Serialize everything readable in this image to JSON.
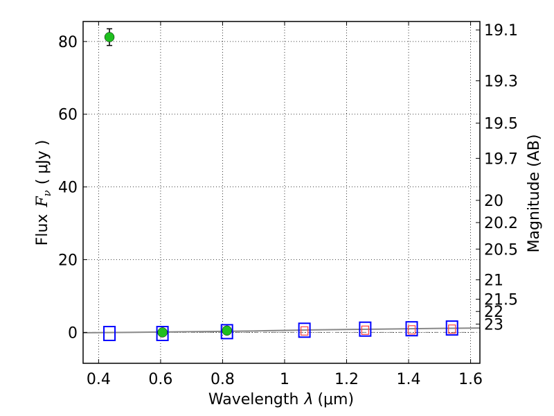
{
  "chart_data": {
    "type": "scatter",
    "xlabel_text": "Wavelength",
    "xlabel_symbol": "λ",
    "xlabel_unit": "(μm)",
    "ylabel_text": "Flux",
    "ylabel_symbol": "F",
    "ylabel_subscript": "ν",
    "ylabel_unit": "( μJy )",
    "y2label": "Magnitude (AB)",
    "xlim": [
      0.35,
      1.63
    ],
    "ylim": [
      -8.5,
      85.5
    ],
    "grid": true,
    "x_ticks": [
      {
        "value": 0.4,
        "label": "0.4"
      },
      {
        "value": 0.6,
        "label": "0.6"
      },
      {
        "value": 0.8,
        "label": "0.8"
      },
      {
        "value": 1.0,
        "label": "1"
      },
      {
        "value": 1.2,
        "label": "1.2"
      },
      {
        "value": 1.4,
        "label": "1.4"
      },
      {
        "value": 1.6,
        "label": "1.6"
      }
    ],
    "y_ticks": [
      {
        "value": 0,
        "label": "0"
      },
      {
        "value": 20,
        "label": "20"
      },
      {
        "value": 40,
        "label": "40"
      },
      {
        "value": 60,
        "label": "60"
      },
      {
        "value": 80,
        "label": "80"
      }
    ],
    "y2_ticks": [
      {
        "value": 19.1,
        "label": "19.1"
      },
      {
        "value": 19.3,
        "label": "19.3"
      },
      {
        "value": 19.5,
        "label": "19.5"
      },
      {
        "value": 19.7,
        "label": "19.7"
      },
      {
        "value": 20.0,
        "label": "20"
      },
      {
        "value": 20.2,
        "label": "20.2"
      },
      {
        "value": 20.5,
        "label": "20.5"
      },
      {
        "value": 21.0,
        "label": "21"
      },
      {
        "value": 21.5,
        "label": "21.5"
      },
      {
        "value": 22.0,
        "label": "22"
      },
      {
        "value": 23.0,
        "label": "23"
      }
    ],
    "series": [
      {
        "marker": "circle",
        "color": "#1fbf1f",
        "points": [
          {
            "x": 0.435,
            "y": 81.2,
            "err": 2.3
          },
          {
            "x": 0.606,
            "y": 0.0,
            "err": 0.4
          },
          {
            "x": 0.814,
            "y": 0.5,
            "err": 0.4
          }
        ]
      },
      {
        "marker": "open-square",
        "color": "#0000ff",
        "points": [
          {
            "x": 0.435,
            "y": -0.3
          },
          {
            "x": 0.606,
            "y": -0.3
          },
          {
            "x": 0.814,
            "y": 0.2
          },
          {
            "x": 1.064,
            "y": 0.6
          },
          {
            "x": 1.26,
            "y": 0.9
          },
          {
            "x": 1.41,
            "y": 1.0
          },
          {
            "x": 1.54,
            "y": 1.2
          }
        ]
      },
      {
        "marker": "small-open-square",
        "color": "#ff4040",
        "points": [
          {
            "x": 1.064,
            "y": 0.4
          },
          {
            "x": 1.26,
            "y": 0.6
          },
          {
            "x": 1.41,
            "y": 0.7
          },
          {
            "x": 1.54,
            "y": 0.9
          }
        ]
      },
      {
        "marker": "line",
        "color": "#888888",
        "points": [
          {
            "x": 0.35,
            "y": -0.1
          },
          {
            "x": 0.5,
            "y": 0.0
          },
          {
            "x": 0.7,
            "y": 0.2
          },
          {
            "x": 0.9,
            "y": 0.4
          },
          {
            "x": 1.1,
            "y": 0.7
          },
          {
            "x": 1.3,
            "y": 0.9
          },
          {
            "x": 1.5,
            "y": 1.1
          },
          {
            "x": 1.63,
            "y": 1.2
          }
        ]
      }
    ],
    "zero_line": {
      "y": 0.0,
      "color": "#808080"
    }
  }
}
